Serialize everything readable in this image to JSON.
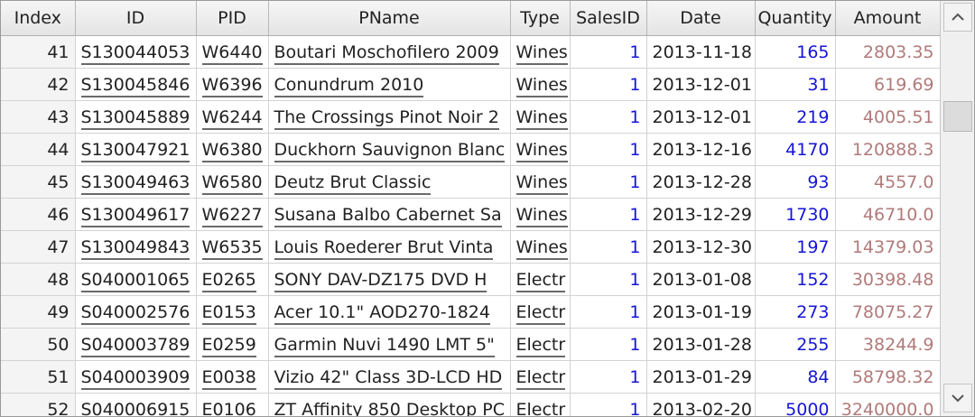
{
  "table": {
    "columns": [
      {
        "key": "index",
        "label": "Index"
      },
      {
        "key": "id",
        "label": "ID"
      },
      {
        "key": "pid",
        "label": "PID"
      },
      {
        "key": "pname",
        "label": "PName"
      },
      {
        "key": "type",
        "label": "Type"
      },
      {
        "key": "salesid",
        "label": "SalesID"
      },
      {
        "key": "date",
        "label": "Date"
      },
      {
        "key": "quantity",
        "label": "Quantity"
      },
      {
        "key": "amount",
        "label": "Amount"
      }
    ],
    "rows": [
      {
        "index": "41",
        "id": "S130044053",
        "pid": "W6440",
        "pname": "Boutari Moschofilero 2009",
        "type": "Wines",
        "salesid": "1",
        "date": "2013-11-18",
        "quantity": "165",
        "amount": "2803.35"
      },
      {
        "index": "42",
        "id": "S130045846",
        "pid": "W6396",
        "pname": "Conundrum 2010",
        "type": "Wines",
        "salesid": "1",
        "date": "2013-12-01",
        "quantity": "31",
        "amount": "619.69"
      },
      {
        "index": "43",
        "id": "S130045889",
        "pid": "W6244",
        "pname": "The Crossings Pinot Noir 2",
        "type": "Wines",
        "salesid": "1",
        "date": "2013-12-01",
        "quantity": "219",
        "amount": "4005.51"
      },
      {
        "index": "44",
        "id": "S130047921",
        "pid": "W6380",
        "pname": "Duckhorn Sauvignon Blanc",
        "type": "Wines",
        "salesid": "1",
        "date": "2013-12-16",
        "quantity": "4170",
        "amount": "120888.3"
      },
      {
        "index": "45",
        "id": "S130049463",
        "pid": "W6580",
        "pname": "Deutz Brut Classic",
        "type": "Wines",
        "salesid": "1",
        "date": "2013-12-28",
        "quantity": "93",
        "amount": "4557.0"
      },
      {
        "index": "46",
        "id": "S130049617",
        "pid": "W6227",
        "pname": "Susana Balbo Cabernet Sa",
        "type": "Wines",
        "salesid": "1",
        "date": "2013-12-29",
        "quantity": "1730",
        "amount": "46710.0"
      },
      {
        "index": "47",
        "id": "S130049843",
        "pid": "W6535",
        "pname": "Louis Roederer Brut Vinta",
        "type": "Wines",
        "salesid": "1",
        "date": "2013-12-30",
        "quantity": "197",
        "amount": "14379.03"
      },
      {
        "index": "48",
        "id": "S040001065",
        "pid": "E0265",
        "pname": "SONY DAV-DZ175 DVD H",
        "type": "Electr",
        "salesid": "1",
        "date": "2013-01-08",
        "quantity": "152",
        "amount": "30398.48"
      },
      {
        "index": "49",
        "id": "S040002576",
        "pid": "E0153",
        "pname": "Acer 10.1\" AOD270-1824",
        "type": "Electr",
        "salesid": "1",
        "date": "2013-01-19",
        "quantity": "273",
        "amount": "78075.27"
      },
      {
        "index": "50",
        "id": "S040003789",
        "pid": "E0259",
        "pname": "Garmin Nuvi 1490 LMT 5\"",
        "type": "Electr",
        "salesid": "1",
        "date": "2013-01-28",
        "quantity": "255",
        "amount": "38244.9"
      },
      {
        "index": "51",
        "id": "S040003909",
        "pid": "E0038",
        "pname": "Vizio 42\" Class 3D-LCD HD",
        "type": "Electr",
        "salesid": "1",
        "date": "2013-01-29",
        "quantity": "84",
        "amount": "58798.32"
      },
      {
        "index": "52",
        "id": "S040006915",
        "pid": "E0106",
        "pname": "ZT Affinity 850 Desktop PC",
        "type": "Electr",
        "salesid": "1",
        "date": "2013-02-20",
        "quantity": "5000",
        "amount": "3240000.0"
      }
    ]
  },
  "scrollbar": {
    "up_icon": "chevron-up-icon",
    "down_icon": "chevron-down-icon"
  },
  "colors": {
    "number_blue": "#1515d8",
    "amount_brown": "#b17a7a",
    "header_bg": "#e4e4e4",
    "index_bg": "#f4f4f4"
  }
}
